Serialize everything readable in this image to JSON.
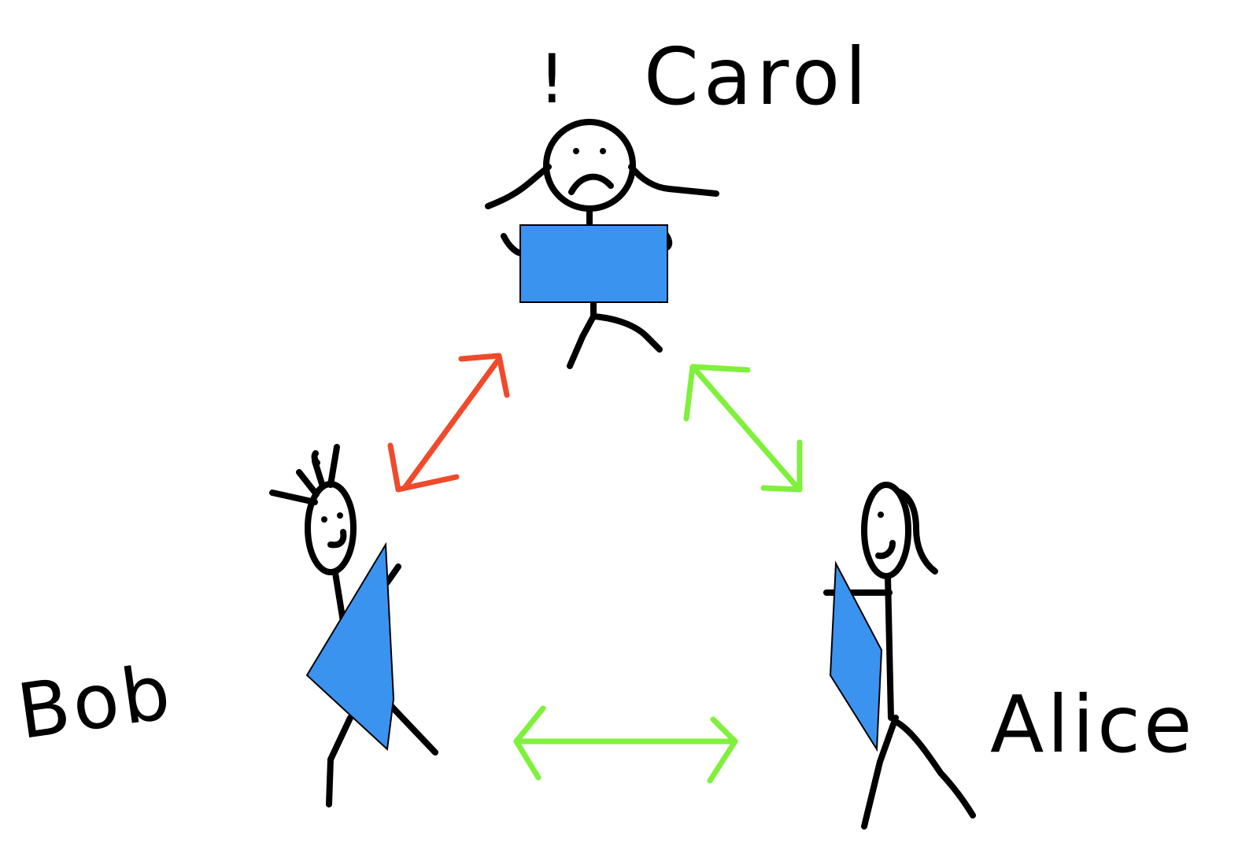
{
  "labels": {
    "carol": "Carol",
    "bob": "Bob",
    "alice": "Alice",
    "exclamation": "!"
  },
  "colors": {
    "ink": "#000000",
    "card": "#3b93f0",
    "conflict_arrow": "#ef4a2b",
    "friendly_arrow": "#7ff03b"
  },
  "relations": [
    {
      "from": "carol",
      "to": "bob",
      "kind": "conflict"
    },
    {
      "from": "carol",
      "to": "alice",
      "kind": "friendly"
    },
    {
      "from": "bob",
      "to": "alice",
      "kind": "friendly"
    }
  ]
}
